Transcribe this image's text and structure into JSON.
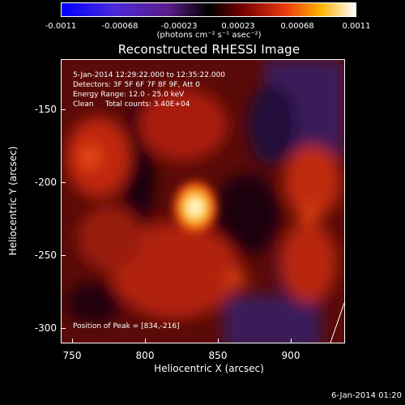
{
  "colorbar": {
    "ticks": [
      "-0.0011",
      "-0.00068",
      "-0.00023",
      "0.00023",
      "0.00068",
      "0.0011"
    ],
    "units": "(photons cm⁻² s⁻¹ asec⁻²)"
  },
  "title": "Reconstructed RHESSI Image",
  "info": {
    "time_range": "5-Jan-2014 12:29:22.000 to 12:35:22.000",
    "detectors": "Detectors: 3F 5F 6F 7F 8F 9F, Att 0",
    "energy": "Energy Range: 12.0 - 25.0 keV",
    "clean": "Clean     Total counts: 3.40E+04",
    "peak": "Position of Peak = [834,-216]"
  },
  "axes": {
    "xlabel": "Heliocentric X (arcsec)",
    "ylabel": "Heliocentric Y (arcsec)",
    "xticks": [
      "750",
      "800",
      "850",
      "900"
    ],
    "yticks": [
      "-150",
      "-200",
      "-250",
      "-300"
    ]
  },
  "footer": {
    "date": "6-Jan-2014 01:20"
  }
}
